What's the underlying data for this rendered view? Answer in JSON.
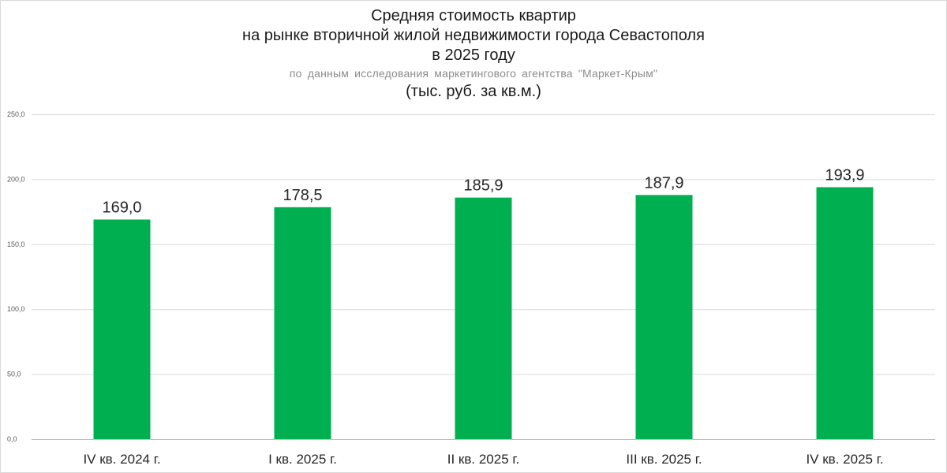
{
  "chart_data": {
    "type": "bar",
    "title_lines": [
      "Средняя стоимость квартир",
      "на рынке вторичной жилой недвижимости города Севастополя",
      "в 2025 году"
    ],
    "subtitle": "по данным исследования маркетингового агентства \"Маркет-Крым\"",
    "units": "(тыс. руб. за кв.м.)",
    "categories": [
      "IV кв. 2024 г.",
      "I кв. 2025 г.",
      "II кв. 2025 г.",
      "III кв. 2025 г.",
      "IV кв. 2025 г."
    ],
    "values": [
      169.0,
      178.5,
      185.9,
      187.9,
      193.9
    ],
    "data_labels": [
      "169,0",
      "178,5",
      "185,9",
      "187,9",
      "193,9"
    ],
    "y_ticks": [
      0,
      50,
      100,
      150,
      200,
      250
    ],
    "y_tick_labels": [
      "0,0",
      "50,0",
      "100,0",
      "150,0",
      "200,0",
      "250,0"
    ],
    "ylim": [
      0,
      250
    ],
    "grid": true,
    "legend": "none",
    "bar_color": "#00B050"
  }
}
